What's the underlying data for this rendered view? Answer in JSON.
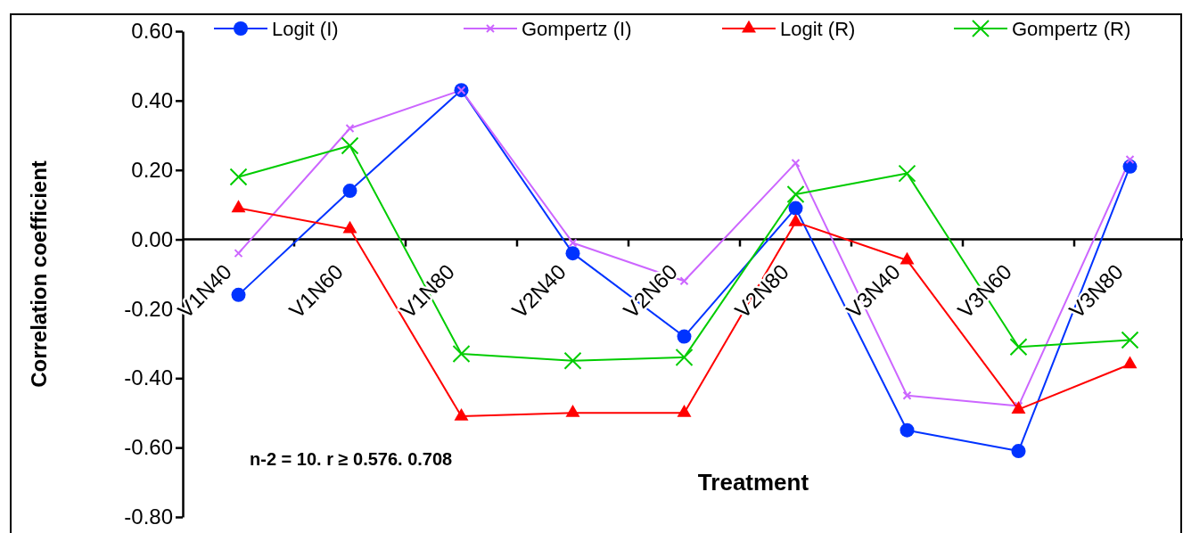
{
  "chart_data": {
    "type": "line",
    "xlabel": "Treatment",
    "ylabel": "Correlation coefficient",
    "categories": [
      "V1N40",
      "V1N60",
      "V1N80",
      "V2N40",
      "V2N60",
      "V2N80",
      "V3N40",
      "V3N60",
      "V3N80"
    ],
    "series": [
      {
        "name": "Logit (I)",
        "color": "#0033ff",
        "marker": "circle",
        "values": [
          -0.16,
          0.14,
          0.43,
          -0.04,
          -0.28,
          0.09,
          -0.55,
          -0.61,
          0.21
        ]
      },
      {
        "name": "Gompertz (I)",
        "color": "#cc66ff",
        "marker": "cross",
        "values": [
          -0.04,
          0.32,
          0.43,
          -0.01,
          -0.12,
          0.22,
          -0.45,
          -0.48,
          0.23
        ]
      },
      {
        "name": "Logit (R)",
        "color": "#ff0000",
        "marker": "triangle",
        "values": [
          0.09,
          0.03,
          -0.51,
          -0.5,
          -0.5,
          0.05,
          -0.06,
          -0.49,
          -0.36
        ]
      },
      {
        "name": "Gompertz (R)",
        "color": "#00cc00",
        "marker": "cross",
        "values": [
          0.18,
          0.27,
          -0.33,
          -0.35,
          -0.34,
          0.13,
          0.19,
          -0.31,
          -0.29
        ]
      }
    ],
    "ylim": [
      -0.8,
      0.6
    ],
    "yticks": [
      {
        "value": -0.8,
        "label": "-0.80"
      },
      {
        "value": -0.6,
        "label": "-0.60"
      },
      {
        "value": -0.4,
        "label": "-0.40"
      },
      {
        "value": -0.2,
        "label": "-0.20"
      },
      {
        "value": 0,
        "label": "0.00"
      },
      {
        "value": 0.2,
        "label": "0.20"
      },
      {
        "value": 0.4,
        "label": "0.40"
      },
      {
        "value": 0.6,
        "label": "0.60"
      }
    ],
    "legend": "top",
    "annotations": [
      "n-2 = 10. r ≥ 0.576.  0.708"
    ]
  }
}
